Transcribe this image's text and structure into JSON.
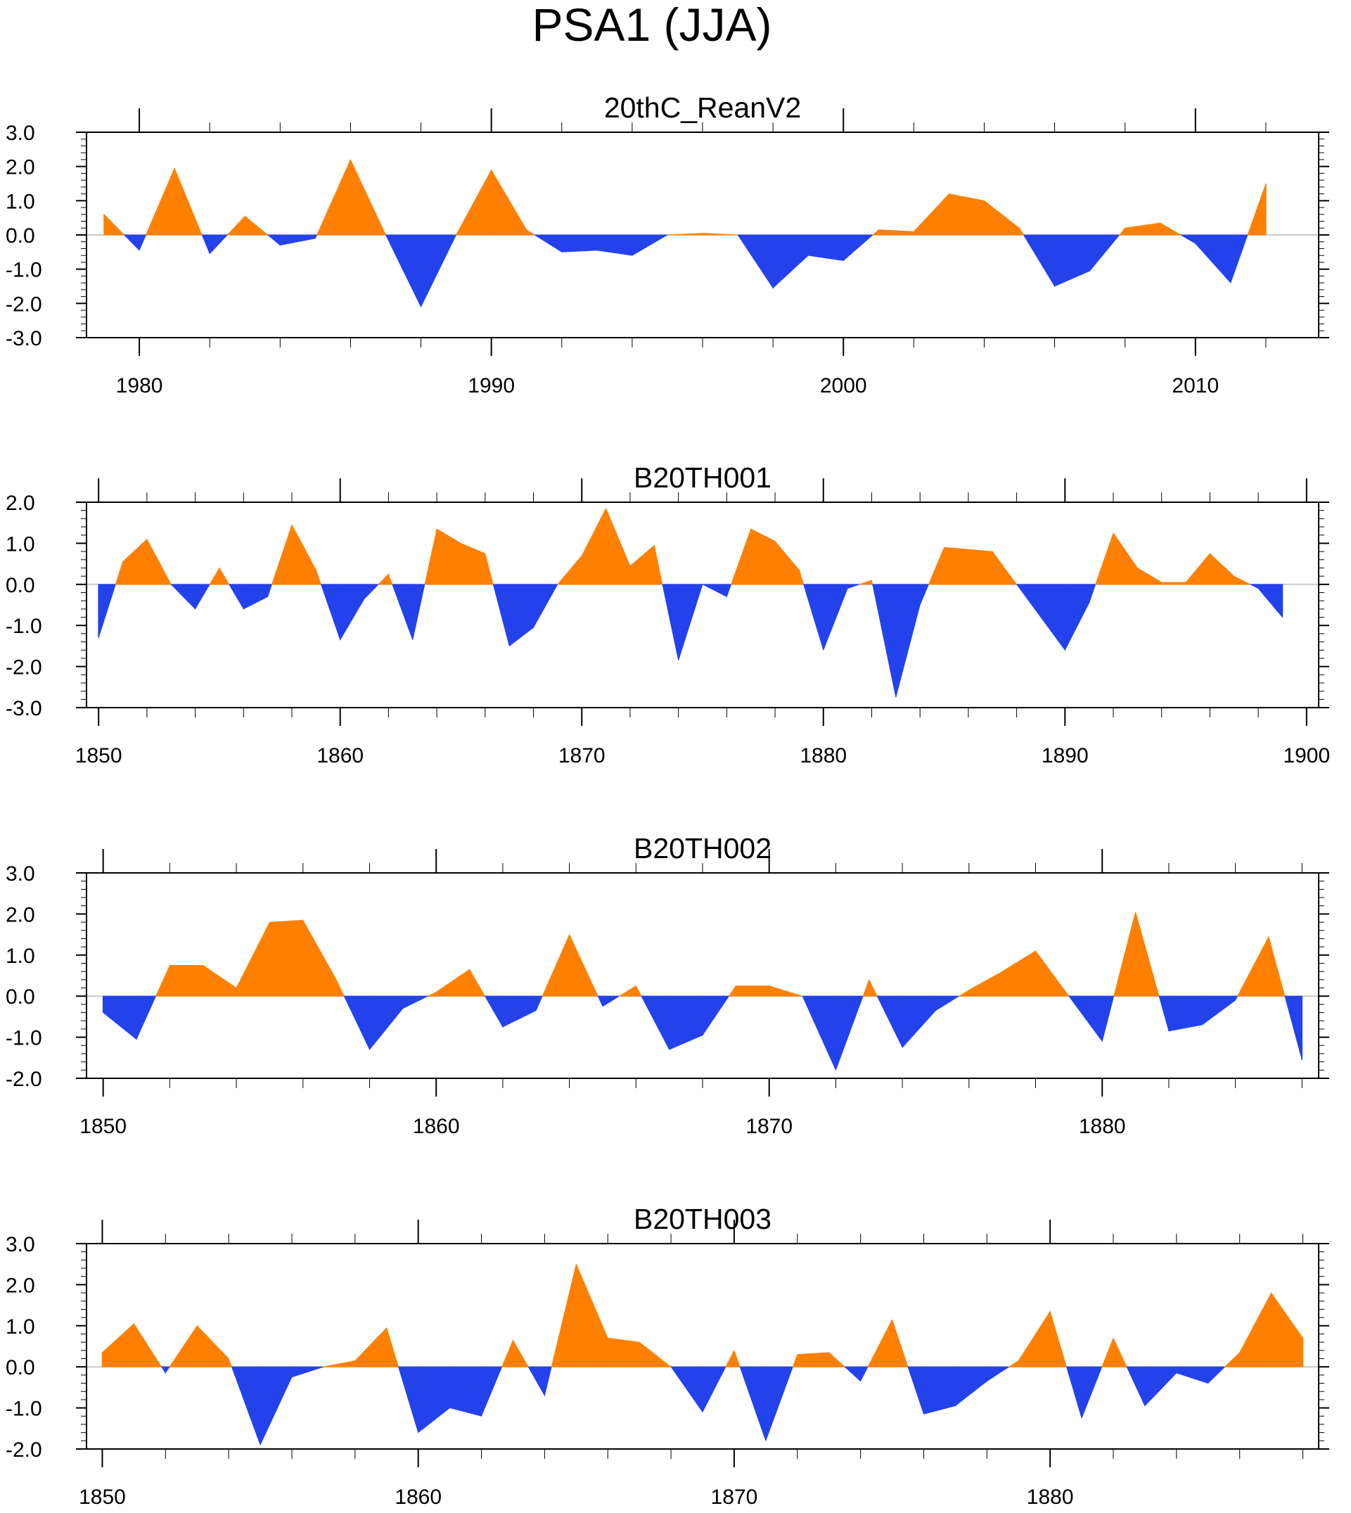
{
  "figure_title": "PSA1 (JJA)",
  "colors": {
    "positive": "#ff8000",
    "negative": "#2442eb",
    "axis": "#000000",
    "zero_line": "#c8c8c8"
  },
  "chart_data": [
    {
      "type": "area",
      "title": "20thC_ReanV2",
      "x_start": 1979,
      "xlim": [
        1978.5,
        2013.5
      ],
      "ylim": [
        -3.0,
        3.0
      ],
      "y_ticks": [
        -3.0,
        -2.0,
        -1.0,
        0.0,
        1.0,
        2.0,
        3.0
      ],
      "y_tick_labels": [
        "-3.0",
        "-2.0",
        "-1.0",
        "0.0",
        "1.0",
        "2.0",
        "3.0"
      ],
      "x_ticks": [
        1980,
        1990,
        2000,
        2010
      ],
      "x_tick_labels": [
        "1980",
        "1990",
        "2000",
        "2010"
      ],
      "values": [
        0.6,
        -0.45,
        1.95,
        -0.55,
        0.55,
        -0.3,
        -0.1,
        2.2,
        0.0,
        -2.1,
        0.0,
        1.9,
        0.15,
        -0.5,
        -0.45,
        -0.6,
        0.0,
        0.05,
        0.0,
        -1.55,
        -0.6,
        -0.75,
        0.15,
        0.1,
        1.2,
        1.0,
        0.2,
        -1.5,
        -1.05,
        0.2,
        0.35,
        -0.25,
        -1.4,
        1.5
      ]
    },
    {
      "type": "area",
      "title": "B20TH001",
      "x_start": 1850,
      "xlim": [
        1849.5,
        1900.5
      ],
      "ylim": [
        -3.0,
        2.0
      ],
      "y_ticks": [
        -3.0,
        -2.0,
        -1.0,
        0.0,
        1.0,
        2.0
      ],
      "y_tick_labels": [
        "-3.0",
        "-2.0",
        "-1.0",
        "0.0",
        "1.0",
        "2.0"
      ],
      "x_ticks": [
        1850,
        1860,
        1870,
        1880,
        1890,
        1900
      ],
      "x_tick_labels": [
        "1850",
        "1860",
        "1870",
        "1880",
        "1890",
        "1900"
      ],
      "values": [
        -1.3,
        0.55,
        1.1,
        0.0,
        -0.6,
        0.4,
        -0.6,
        -0.3,
        1.45,
        0.35,
        -1.35,
        -0.35,
        0.25,
        -1.35,
        1.35,
        1.0,
        0.75,
        -1.5,
        -1.05,
        0.0,
        0.7,
        1.85,
        0.45,
        0.95,
        -1.85,
        0.0,
        -0.3,
        1.35,
        1.05,
        0.35,
        -1.6,
        -0.1,
        0.1,
        -2.75,
        -0.5,
        0.9,
        0.85,
        0.8,
        0.0,
        -0.8,
        -1.6,
        -0.45,
        1.25,
        0.4,
        0.05,
        0.05,
        0.75,
        0.2,
        -0.1,
        -0.8
      ]
    },
    {
      "type": "area",
      "title": "B20TH002",
      "x_start": 1850,
      "xlim": [
        1849.5,
        1886.5
      ],
      "ylim": [
        -2.0,
        3.0
      ],
      "y_ticks": [
        -2.0,
        -1.0,
        0.0,
        1.0,
        2.0,
        3.0
      ],
      "y_tick_labels": [
        "-2.0",
        "-1.0",
        "0.0",
        "1.0",
        "2.0",
        "3.0"
      ],
      "x_ticks": [
        1850,
        1860,
        1870,
        1880
      ],
      "x_tick_labels": [
        "1850",
        "1860",
        "1870",
        "1880"
      ],
      "values": [
        -0.4,
        -1.05,
        0.75,
        0.75,
        0.2,
        1.8,
        1.85,
        0.4,
        -1.3,
        -0.3,
        0.1,
        0.65,
        -0.75,
        -0.35,
        1.5,
        -0.25,
        0.25,
        -1.3,
        -0.95,
        0.25,
        0.25,
        0.0,
        -1.8,
        0.4,
        -1.25,
        -0.35,
        0.15,
        0.6,
        1.1,
        0.0,
        -1.1,
        2.05,
        -0.85,
        -0.7,
        -0.1,
        1.45,
        -1.55
      ]
    },
    {
      "type": "area",
      "title": "B20TH003",
      "x_start": 1850,
      "xlim": [
        1849.5,
        1888.5
      ],
      "ylim": [
        -2.0,
        3.0
      ],
      "y_ticks": [
        -2.0,
        -1.0,
        0.0,
        1.0,
        2.0,
        3.0
      ],
      "y_tick_labels": [
        "-2.0",
        "-1.0",
        "0.0",
        "1.0",
        "2.0",
        "3.0"
      ],
      "x_ticks": [
        1850,
        1860,
        1870,
        1880
      ],
      "x_tick_labels": [
        "1850",
        "1860",
        "1870",
        "1880"
      ],
      "values": [
        0.35,
        1.05,
        -0.15,
        1.0,
        0.2,
        -1.9,
        -0.25,
        0.0,
        0.15,
        0.95,
        -1.6,
        -1.0,
        -1.2,
        0.65,
        -0.7,
        2.5,
        0.7,
        0.6,
        0.0,
        -1.1,
        0.4,
        -1.8,
        0.3,
        0.35,
        -0.35,
        1.15,
        -1.15,
        -0.95,
        -0.35,
        0.15,
        1.35,
        -1.25,
        0.7,
        -0.95,
        -0.15,
        -0.4,
        0.35,
        1.8,
        0.7
      ]
    }
  ]
}
